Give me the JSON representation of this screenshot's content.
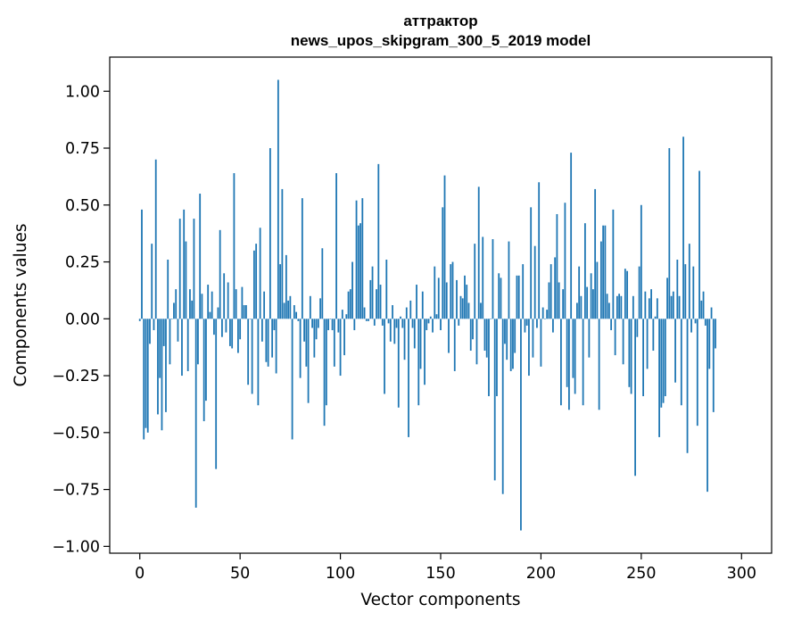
{
  "chart_data": {
    "type": "bar",
    "title": "аттрактор",
    "subtitle": "news_upos_skipgram_300_5_2019 model",
    "xlabel": "Vector components",
    "ylabel": "Components values",
    "xlim": [
      -15,
      315
    ],
    "ylim": [
      -1.03,
      1.15
    ],
    "xticks": [
      0,
      50,
      100,
      150,
      200,
      250,
      300
    ],
    "xtick_labels": [
      "0",
      "50",
      "100",
      "150",
      "200",
      "250",
      "300"
    ],
    "yticks": [
      -1.0,
      -0.75,
      -0.5,
      -0.25,
      0.0,
      0.25,
      0.5,
      0.75,
      1.0
    ],
    "ytick_labels": [
      "−1.00",
      "−0.75",
      "−0.50",
      "−0.25",
      "0.00",
      "0.25",
      "0.50",
      "0.75",
      "1.00"
    ],
    "grid": false,
    "color": "#1f77b4",
    "values": [
      -0.01,
      0.48,
      -0.53,
      -0.48,
      -0.5,
      -0.11,
      0.33,
      -0.05,
      0.7,
      -0.42,
      -0.26,
      -0.49,
      -0.12,
      -0.41,
      0.26,
      -0.2,
      0.0,
      0.07,
      0.13,
      -0.1,
      0.44,
      -0.25,
      0.48,
      0.34,
      -0.23,
      0.13,
      0.08,
      0.44,
      -0.83,
      -0.2,
      0.55,
      0.11,
      -0.45,
      -0.36,
      0.15,
      0.03,
      0.12,
      -0.07,
      -0.66,
      0.05,
      0.39,
      -0.08,
      0.2,
      -0.06,
      0.16,
      -0.12,
      -0.13,
      0.64,
      0.13,
      -0.15,
      -0.09,
      0.14,
      0.06,
      0.06,
      -0.29,
      0.0,
      -0.33,
      0.3,
      0.33,
      -0.38,
      0.4,
      -0.1,
      0.12,
      -0.19,
      -0.21,
      0.75,
      -0.17,
      -0.05,
      -0.24,
      1.05,
      0.24,
      0.57,
      0.07,
      0.28,
      0.08,
      0.1,
      -0.53,
      0.06,
      0.03,
      -0.01,
      -0.26,
      0.53,
      -0.1,
      -0.21,
      -0.37,
      0.1,
      -0.04,
      -0.17,
      -0.09,
      -0.04,
      0.09,
      0.31,
      -0.47,
      -0.38,
      -0.05,
      0.0,
      -0.05,
      -0.21,
      0.64,
      -0.06,
      -0.25,
      0.04,
      -0.16,
      0.02,
      0.12,
      0.13,
      0.25,
      -0.05,
      0.52,
      0.41,
      0.42,
      0.53,
      0.05,
      -0.01,
      -0.01,
      0.17,
      0.23,
      -0.03,
      0.13,
      0.68,
      0.15,
      -0.03,
      -0.33,
      0.26,
      -0.02,
      -0.1,
      0.06,
      -0.11,
      -0.04,
      -0.39,
      0.01,
      -0.04,
      -0.18,
      0.05,
      -0.52,
      0.08,
      -0.04,
      -0.13,
      0.15,
      -0.38,
      -0.22,
      0.12,
      -0.29,
      -0.05,
      -0.02,
      0.01,
      -0.06,
      0.23,
      0.02,
      0.18,
      -0.05,
      0.49,
      0.63,
      0.16,
      -0.15,
      0.24,
      0.25,
      -0.23,
      0.17,
      -0.03,
      0.1,
      0.09,
      0.19,
      0.15,
      0.07,
      -0.14,
      -0.09,
      0.33,
      -0.2,
      0.58,
      0.07,
      0.36,
      -0.14,
      -0.17,
      -0.34,
      0.0,
      0.35,
      -0.71,
      -0.34,
      0.2,
      0.18,
      -0.77,
      -0.11,
      -0.18,
      0.34,
      -0.23,
      -0.22,
      -0.15,
      0.19,
      0.19,
      -0.93,
      0.24,
      -0.06,
      -0.03,
      -0.25,
      0.49,
      -0.17,
      0.32,
      -0.04,
      0.6,
      -0.21,
      0.05,
      0.0,
      0.04,
      0.16,
      0.24,
      -0.06,
      0.27,
      0.46,
      0.16,
      -0.38,
      0.13,
      0.51,
      -0.3,
      -0.4,
      0.73,
      -0.26,
      -0.33,
      0.07,
      0.23,
      0.1,
      -0.38,
      0.42,
      0.14,
      -0.17,
      0.2,
      0.13,
      0.57,
      0.25,
      -0.4,
      0.34,
      0.41,
      0.41,
      0.11,
      0.07,
      -0.05,
      0.48,
      -0.16,
      0.1,
      0.11,
      0.1,
      -0.2,
      0.22,
      0.21,
      -0.3,
      -0.33,
      0.1,
      -0.69,
      -0.08,
      0.23,
      0.5,
      -0.34,
      0.12,
      -0.22,
      0.09,
      0.13,
      -0.14,
      0.01,
      0.09,
      -0.52,
      -0.39,
      -0.37,
      -0.34,
      0.18,
      0.75,
      0.1,
      0.12,
      -0.28,
      0.26,
      0.1,
      -0.38,
      0.8,
      0.24,
      -0.59,
      0.33,
      -0.06,
      0.23,
      -0.02,
      -0.47,
      0.65,
      0.08,
      0.12,
      -0.03,
      -0.76,
      -0.22,
      0.05,
      -0.41,
      -0.13
    ]
  }
}
